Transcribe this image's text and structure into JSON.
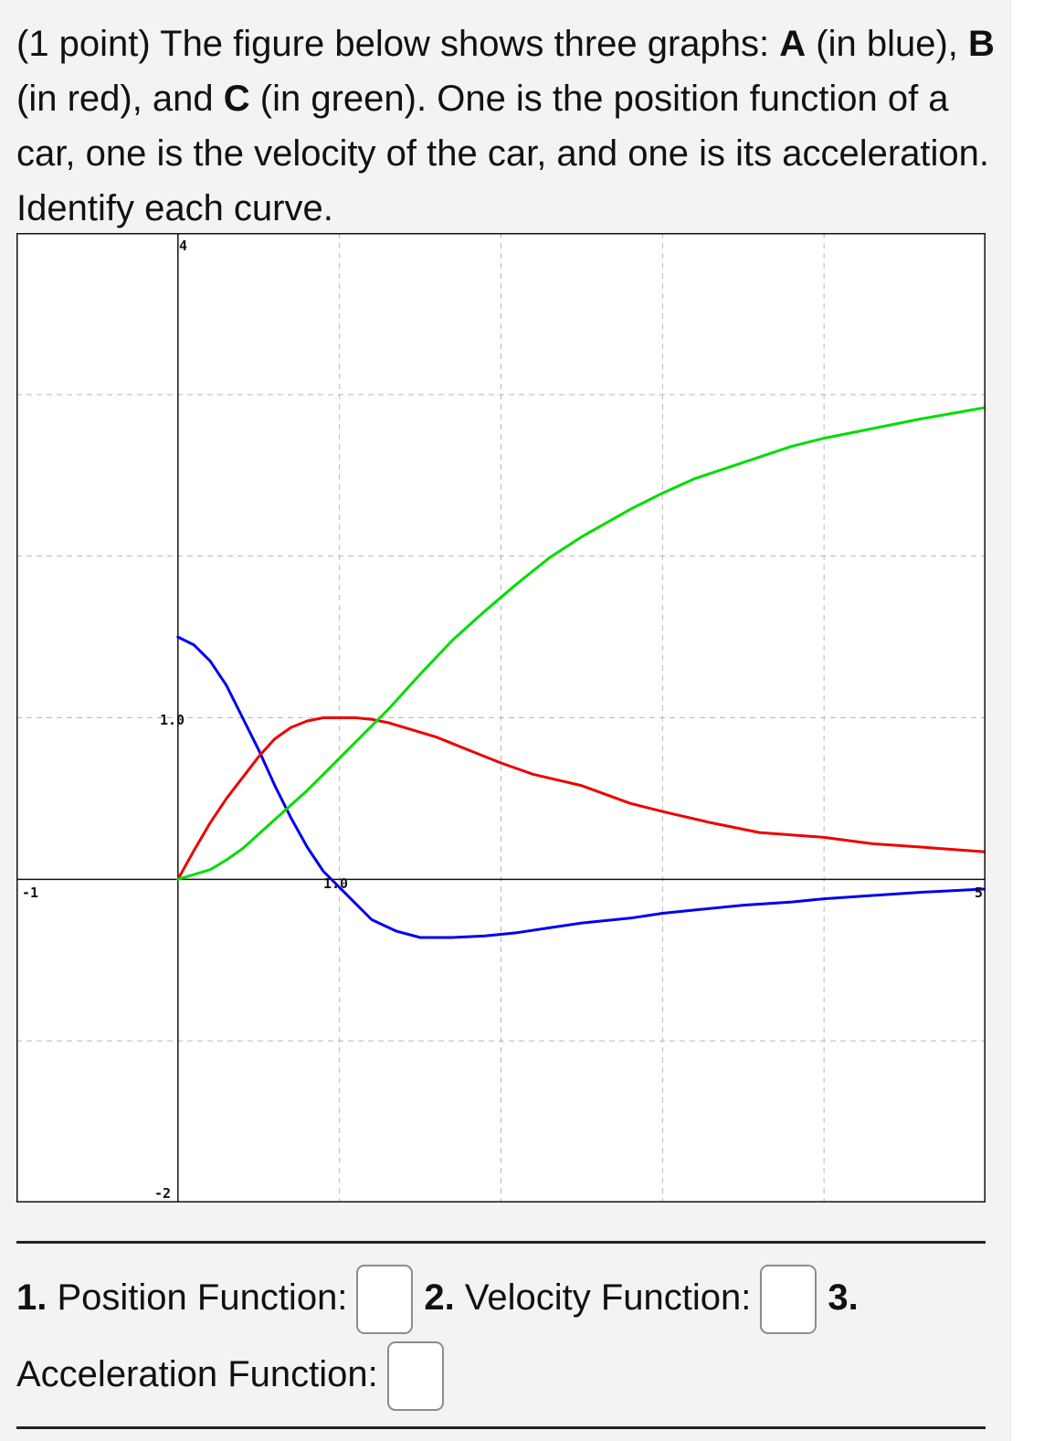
{
  "question": {
    "prefix": "(1 point) The figure below shows three graphs: ",
    "a_label": "A",
    "a_text": " (in blue), ",
    "b_label": "B",
    "b_text": " (in red), and ",
    "c_label": "C",
    "c_text": " (in green). One is the position function of a car, one is the velocity of the car, and one is its acceleration. Identify each curve."
  },
  "chart_data": {
    "type": "line",
    "xlim": [
      -1,
      5
    ],
    "ylim": [
      -2,
      4
    ],
    "grid": true,
    "tick_labels": {
      "x_left": "-1",
      "x_right": "5",
      "x_mid": "1.0",
      "y_top": "4",
      "y_bottom": "-2",
      "y_mid": "1.0"
    },
    "series": [
      {
        "name": "A",
        "color": "#0000ee",
        "x": [
          0,
          0.1,
          0.2,
          0.3,
          0.4,
          0.5,
          0.6,
          0.7,
          0.8,
          0.9,
          1.0,
          1.1,
          1.2,
          1.35,
          1.5,
          1.7,
          1.9,
          2.1,
          2.3,
          2.5,
          2.8,
          3.0,
          3.2,
          3.5,
          3.8,
          4.0,
          4.3,
          4.6,
          5.0
        ],
        "y": [
          1.5,
          1.45,
          1.35,
          1.2,
          1.0,
          0.8,
          0.58,
          0.38,
          0.2,
          0.05,
          -0.05,
          -0.15,
          -0.25,
          -0.32,
          -0.36,
          -0.36,
          -0.35,
          -0.33,
          -0.3,
          -0.27,
          -0.24,
          -0.21,
          -0.19,
          -0.16,
          -0.14,
          -0.12,
          -0.1,
          -0.08,
          -0.06
        ]
      },
      {
        "name": "B",
        "color": "#ee0000",
        "x": [
          0,
          0.1,
          0.2,
          0.3,
          0.4,
          0.5,
          0.6,
          0.7,
          0.8,
          0.9,
          1.0,
          1.1,
          1.2,
          1.3,
          1.4,
          1.6,
          1.8,
          2.0,
          2.2,
          2.5,
          2.8,
          3.0,
          3.3,
          3.6,
          4.0,
          4.3,
          4.6,
          5.0
        ],
        "y": [
          0,
          0.18,
          0.35,
          0.5,
          0.63,
          0.76,
          0.87,
          0.94,
          0.98,
          1.0,
          1.0,
          1.0,
          0.99,
          0.97,
          0.94,
          0.88,
          0.8,
          0.72,
          0.65,
          0.58,
          0.47,
          0.42,
          0.35,
          0.29,
          0.26,
          0.22,
          0.2,
          0.17
        ]
      },
      {
        "name": "C",
        "color": "#00dd00",
        "x": [
          0,
          0.1,
          0.2,
          0.3,
          0.4,
          0.5,
          0.6,
          0.7,
          0.8,
          0.9,
          1.0,
          1.1,
          1.2,
          1.3,
          1.5,
          1.7,
          1.9,
          2.1,
          2.3,
          2.5,
          2.8,
          3.0,
          3.2,
          3.5,
          3.8,
          4.0,
          4.3,
          4.6,
          5.0
        ],
        "y": [
          0,
          0.03,
          0.06,
          0.12,
          0.19,
          0.28,
          0.37,
          0.46,
          0.55,
          0.65,
          0.75,
          0.85,
          0.95,
          1.05,
          1.27,
          1.48,
          1.66,
          1.83,
          1.99,
          2.12,
          2.29,
          2.39,
          2.48,
          2.58,
          2.68,
          2.73,
          2.79,
          2.85,
          2.92
        ]
      }
    ]
  },
  "answers": {
    "q1_num": "1.",
    "q1_label": " Position Function:",
    "q2_num": "2.",
    "q2_label": " Velocity Function:",
    "q3_num": "3.",
    "q3_label": "Acceleration Function:"
  }
}
